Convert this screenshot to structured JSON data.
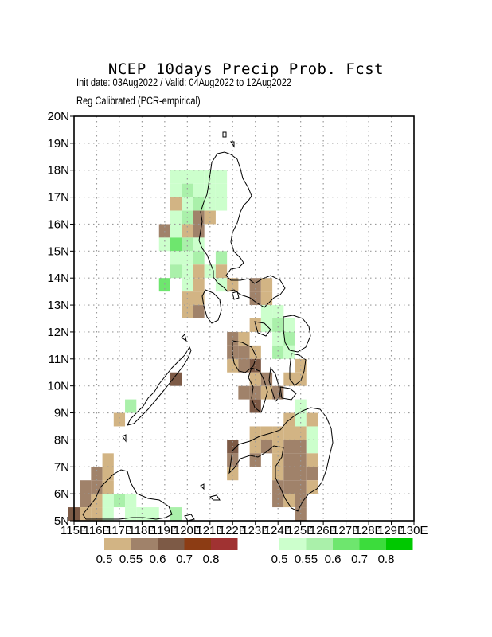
{
  "title": "NCEP 10days Precip Prob. Fcst",
  "subtitle_line1": "Init date: 03Aug2022 / Valid: 04Aug2022 to 12Aug2022",
  "subtitle_line2": "Reg Calibrated (PCR-empirical)",
  "map": {
    "lon_range": [
      115,
      130
    ],
    "lat_range": [
      5,
      20
    ],
    "lat_labels": [
      "5N",
      "6N",
      "7N",
      "8N",
      "9N",
      "10N",
      "11N",
      "12N",
      "13N",
      "14N",
      "15N",
      "16N",
      "17N",
      "18N",
      "19N",
      "20N"
    ],
    "lon_labels": [
      "115E",
      "116E",
      "117E",
      "118E",
      "119E",
      "120E",
      "121E",
      "122E",
      "123E",
      "124E",
      "125E",
      "126E",
      "127E",
      "128E",
      "129E",
      "130E"
    ]
  },
  "legend": {
    "dry": {
      "labels": [
        "0.5",
        "0.55",
        "0.6",
        "0.7",
        "0.8"
      ],
      "colors": [
        "#d2b484",
        "#a0826a",
        "#7d5a46",
        "#8c3c14",
        "#a03232"
      ]
    },
    "wet": {
      "labels": [
        "0.5",
        "0.55",
        "0.6",
        "0.7",
        "0.8"
      ],
      "colors": [
        "#ccffcc",
        "#aaf0aa",
        "#6ee66e",
        "#3cdc3c",
        "#00c800"
      ]
    }
  },
  "grid_cells": [
    {
      "lon": 119.5,
      "lat": 17.75,
      "cat": "wet1"
    },
    {
      "lon": 120.0,
      "lat": 17.75,
      "cat": "wet1"
    },
    {
      "lon": 120.5,
      "lat": 17.75,
      "cat": "wet1"
    },
    {
      "lon": 121.0,
      "lat": 17.75,
      "cat": "wet1"
    },
    {
      "lon": 121.5,
      "lat": 17.75,
      "cat": "wet1"
    },
    {
      "lon": 119.5,
      "lat": 17.25,
      "cat": "wet1"
    },
    {
      "lon": 120.0,
      "lat": 17.25,
      "cat": "wet2"
    },
    {
      "lon": 120.5,
      "lat": 17.25,
      "cat": "wet1"
    },
    {
      "lon": 121.0,
      "lat": 17.25,
      "cat": "wet1"
    },
    {
      "lon": 121.5,
      "lat": 17.25,
      "cat": "wet1"
    },
    {
      "lon": 119.5,
      "lat": 16.75,
      "cat": "dry1"
    },
    {
      "lon": 120.0,
      "lat": 16.75,
      "cat": "wet1"
    },
    {
      "lon": 120.5,
      "lat": 16.75,
      "cat": "wet2"
    },
    {
      "lon": 121.0,
      "lat": 16.75,
      "cat": "wet1"
    },
    {
      "lon": 121.5,
      "lat": 16.75,
      "cat": "wet1"
    },
    {
      "lon": 119.5,
      "lat": 16.25,
      "cat": "wet1"
    },
    {
      "lon": 120.0,
      "lat": 16.25,
      "cat": "wet2"
    },
    {
      "lon": 120.5,
      "lat": 16.25,
      "cat": "dry2"
    },
    {
      "lon": 121.0,
      "lat": 16.25,
      "cat": "dry1"
    },
    {
      "lon": 119.0,
      "lat": 15.75,
      "cat": "dry2"
    },
    {
      "lon": 119.5,
      "lat": 15.75,
      "cat": "wet1"
    },
    {
      "lon": 120.0,
      "lat": 15.75,
      "cat": "dry1"
    },
    {
      "lon": 120.5,
      "lat": 15.75,
      "cat": "dry2"
    },
    {
      "lon": 119.0,
      "lat": 15.25,
      "cat": "wet1"
    },
    {
      "lon": 119.5,
      "lat": 15.25,
      "cat": "wet3"
    },
    {
      "lon": 120.0,
      "lat": 15.25,
      "cat": "wet2"
    },
    {
      "lon": 120.5,
      "lat": 15.25,
      "cat": "wet1"
    },
    {
      "lon": 119.5,
      "lat": 14.75,
      "cat": "wet1"
    },
    {
      "lon": 120.0,
      "lat": 14.75,
      "cat": "wet1"
    },
    {
      "lon": 120.5,
      "lat": 14.75,
      "cat": "wet2"
    },
    {
      "lon": 121.5,
      "lat": 14.75,
      "cat": "wet2"
    },
    {
      "lon": 119.5,
      "lat": 14.25,
      "cat": "wet2"
    },
    {
      "lon": 120.0,
      "lat": 14.25,
      "cat": "wet1"
    },
    {
      "lon": 120.5,
      "lat": 14.25,
      "cat": "dry1"
    },
    {
      "lon": 121.0,
      "lat": 14.25,
      "cat": "wet1"
    },
    {
      "lon": 121.5,
      "lat": 14.25,
      "cat": "dry1"
    },
    {
      "lon": 119.0,
      "lat": 13.75,
      "cat": "wet3"
    },
    {
      "lon": 120.0,
      "lat": 13.75,
      "cat": "wet1"
    },
    {
      "lon": 120.5,
      "lat": 13.75,
      "cat": "dry1"
    },
    {
      "lon": 121.5,
      "lat": 13.75,
      "cat": "wet1"
    },
    {
      "lon": 122.0,
      "lat": 13.75,
      "cat": "dry1"
    },
    {
      "lon": 123.0,
      "lat": 13.75,
      "cat": "dry2"
    },
    {
      "lon": 123.5,
      "lat": 13.75,
      "cat": "dry1"
    },
    {
      "lon": 120.0,
      "lat": 13.25,
      "cat": "dry1"
    },
    {
      "lon": 120.5,
      "lat": 13.25,
      "cat": "dry1"
    },
    {
      "lon": 123.0,
      "lat": 13.25,
      "cat": "dry2"
    },
    {
      "lon": 123.5,
      "lat": 13.25,
      "cat": "dry1"
    },
    {
      "lon": 120.0,
      "lat": 12.75,
      "cat": "dry1"
    },
    {
      "lon": 120.5,
      "lat": 12.75,
      "cat": "dry2"
    },
    {
      "lon": 123.5,
      "lat": 12.75,
      "cat": "wet1"
    },
    {
      "lon": 124.0,
      "lat": 12.75,
      "cat": "wet1"
    },
    {
      "lon": 123.0,
      "lat": 12.25,
      "cat": "dry1"
    },
    {
      "lon": 123.5,
      "lat": 12.25,
      "cat": "wet1"
    },
    {
      "lon": 124.0,
      "lat": 12.25,
      "cat": "wet2"
    },
    {
      "lon": 124.5,
      "lat": 12.25,
      "cat": "wet1"
    },
    {
      "lon": 122.0,
      "lat": 11.75,
      "cat": "dry2"
    },
    {
      "lon": 122.5,
      "lat": 11.75,
      "cat": "dry1"
    },
    {
      "lon": 124.0,
      "lat": 11.75,
      "cat": "wet1"
    },
    {
      "lon": 124.5,
      "lat": 11.75,
      "cat": "wet2"
    },
    {
      "lon": 122.0,
      "lat": 11.25,
      "cat": "dry2"
    },
    {
      "lon": 122.5,
      "lat": 11.25,
      "cat": "dry2"
    },
    {
      "lon": 123.0,
      "lat": 11.25,
      "cat": "dry1"
    },
    {
      "lon": 124.0,
      "lat": 11.25,
      "cat": "wet2"
    },
    {
      "lon": 124.5,
      "lat": 11.25,
      "cat": "wet1"
    },
    {
      "lon": 122.0,
      "lat": 10.75,
      "cat": "dry1"
    },
    {
      "lon": 122.5,
      "lat": 10.75,
      "cat": "dry2"
    },
    {
      "lon": 123.0,
      "lat": 10.75,
      "cat": "dry3"
    },
    {
      "lon": 125.0,
      "lat": 10.75,
      "cat": "dry1"
    },
    {
      "lon": 119.5,
      "lat": 10.25,
      "cat": "dry3"
    },
    {
      "lon": 123.0,
      "lat": 10.25,
      "cat": "dry1"
    },
    {
      "lon": 123.5,
      "lat": 10.25,
      "cat": "dry2"
    },
    {
      "lon": 124.5,
      "lat": 10.25,
      "cat": "dry1"
    },
    {
      "lon": 125.0,
      "lat": 10.25,
      "cat": "dry1"
    },
    {
      "lon": 122.5,
      "lat": 9.75,
      "cat": "dry2"
    },
    {
      "lon": 123.0,
      "lat": 9.75,
      "cat": "dry2"
    },
    {
      "lon": 123.5,
      "lat": 9.75,
      "cat": "dry1"
    },
    {
      "lon": 124.0,
      "lat": 9.75,
      "cat": "dry2"
    },
    {
      "lon": 117.5,
      "lat": 9.25,
      "cat": "wet2"
    },
    {
      "lon": 123.0,
      "lat": 9.25,
      "cat": "dry3"
    },
    {
      "lon": 125.0,
      "lat": 9.25,
      "cat": "wet1"
    },
    {
      "lon": 117.0,
      "lat": 8.75,
      "cat": "dry1"
    },
    {
      "lon": 124.5,
      "lat": 8.75,
      "cat": "dry1"
    },
    {
      "lon": 125.0,
      "lat": 8.75,
      "cat": "wet1"
    },
    {
      "lon": 125.5,
      "lat": 8.75,
      "cat": "dry1"
    },
    {
      "lon": 123.0,
      "lat": 8.25,
      "cat": "dry1"
    },
    {
      "lon": 123.5,
      "lat": 8.25,
      "cat": "dry1"
    },
    {
      "lon": 124.0,
      "lat": 8.25,
      "cat": "dry1"
    },
    {
      "lon": 124.5,
      "lat": 8.25,
      "cat": "dry1"
    },
    {
      "lon": 125.0,
      "lat": 8.25,
      "cat": "dry1"
    },
    {
      "lon": 125.5,
      "lat": 8.25,
      "cat": "wet1"
    },
    {
      "lon": 122.0,
      "lat": 7.75,
      "cat": "dry3"
    },
    {
      "lon": 123.0,
      "lat": 7.75,
      "cat": "dry1"
    },
    {
      "lon": 123.5,
      "lat": 7.75,
      "cat": "dry2"
    },
    {
      "lon": 124.0,
      "lat": 7.75,
      "cat": "dry1"
    },
    {
      "lon": 124.5,
      "lat": 7.75,
      "cat": "dry2"
    },
    {
      "lon": 125.0,
      "lat": 7.75,
      "cat": "dry2"
    },
    {
      "lon": 125.5,
      "lat": 7.75,
      "cat": "wet1"
    },
    {
      "lon": 116.5,
      "lat": 7.25,
      "cat": "dry1"
    },
    {
      "lon": 122.0,
      "lat": 7.25,
      "cat": "dry2"
    },
    {
      "lon": 123.0,
      "lat": 7.25,
      "cat": "dry2"
    },
    {
      "lon": 124.0,
      "lat": 7.25,
      "cat": "dry1"
    },
    {
      "lon": 124.5,
      "lat": 7.25,
      "cat": "dry2"
    },
    {
      "lon": 125.0,
      "lat": 7.25,
      "cat": "dry2"
    },
    {
      "lon": 125.5,
      "lat": 7.25,
      "cat": "dry1"
    },
    {
      "lon": 116.0,
      "lat": 6.75,
      "cat": "dry2"
    },
    {
      "lon": 116.5,
      "lat": 6.75,
      "cat": "dry1"
    },
    {
      "lon": 122.0,
      "lat": 6.75,
      "cat": "dry1"
    },
    {
      "lon": 124.0,
      "lat": 6.75,
      "cat": "dry1"
    },
    {
      "lon": 124.5,
      "lat": 6.75,
      "cat": "dry2"
    },
    {
      "lon": 125.0,
      "lat": 6.75,
      "cat": "dry2"
    },
    {
      "lon": 125.5,
      "lat": 6.75,
      "cat": "dry2"
    },
    {
      "lon": 115.5,
      "lat": 6.25,
      "cat": "dry2"
    },
    {
      "lon": 116.0,
      "lat": 6.25,
      "cat": "dry2"
    },
    {
      "lon": 116.5,
      "lat": 6.25,
      "cat": "dry1"
    },
    {
      "lon": 124.0,
      "lat": 6.25,
      "cat": "dry2"
    },
    {
      "lon": 124.5,
      "lat": 6.25,
      "cat": "dry2"
    },
    {
      "lon": 125.0,
      "lat": 6.25,
      "cat": "dry2"
    },
    {
      "lon": 125.5,
      "lat": 6.25,
      "cat": "dry1"
    },
    {
      "lon": 115.5,
      "lat": 5.75,
      "cat": "dry2"
    },
    {
      "lon": 116.0,
      "lat": 5.75,
      "cat": "dry1"
    },
    {
      "lon": 116.5,
      "lat": 5.75,
      "cat": "wet1"
    },
    {
      "lon": 117.0,
      "lat": 5.75,
      "cat": "wet2"
    },
    {
      "lon": 117.5,
      "lat": 5.75,
      "cat": "wet1"
    },
    {
      "lon": 124.0,
      "lat": 5.75,
      "cat": "dry2"
    },
    {
      "lon": 124.5,
      "lat": 5.75,
      "cat": "dry1"
    },
    {
      "lon": 125.0,
      "lat": 5.75,
      "cat": "dry2"
    },
    {
      "lon": 115.0,
      "lat": 5.25,
      "cat": "dry3"
    },
    {
      "lon": 115.5,
      "lat": 5.25,
      "cat": "dry1"
    },
    {
      "lon": 116.0,
      "lat": 5.25,
      "cat": "dry1"
    },
    {
      "lon": 116.5,
      "lat": 5.25,
      "cat": "wet1"
    },
    {
      "lon": 117.5,
      "lat": 5.25,
      "cat": "wet1"
    },
    {
      "lon": 118.0,
      "lat": 5.25,
      "cat": "wet1"
    },
    {
      "lon": 118.5,
      "lat": 5.25,
      "cat": "wet1"
    },
    {
      "lon": 119.5,
      "lat": 5.25,
      "cat": "wet2"
    },
    {
      "lon": 125.0,
      "lat": 5.25,
      "cat": "dry2"
    }
  ]
}
